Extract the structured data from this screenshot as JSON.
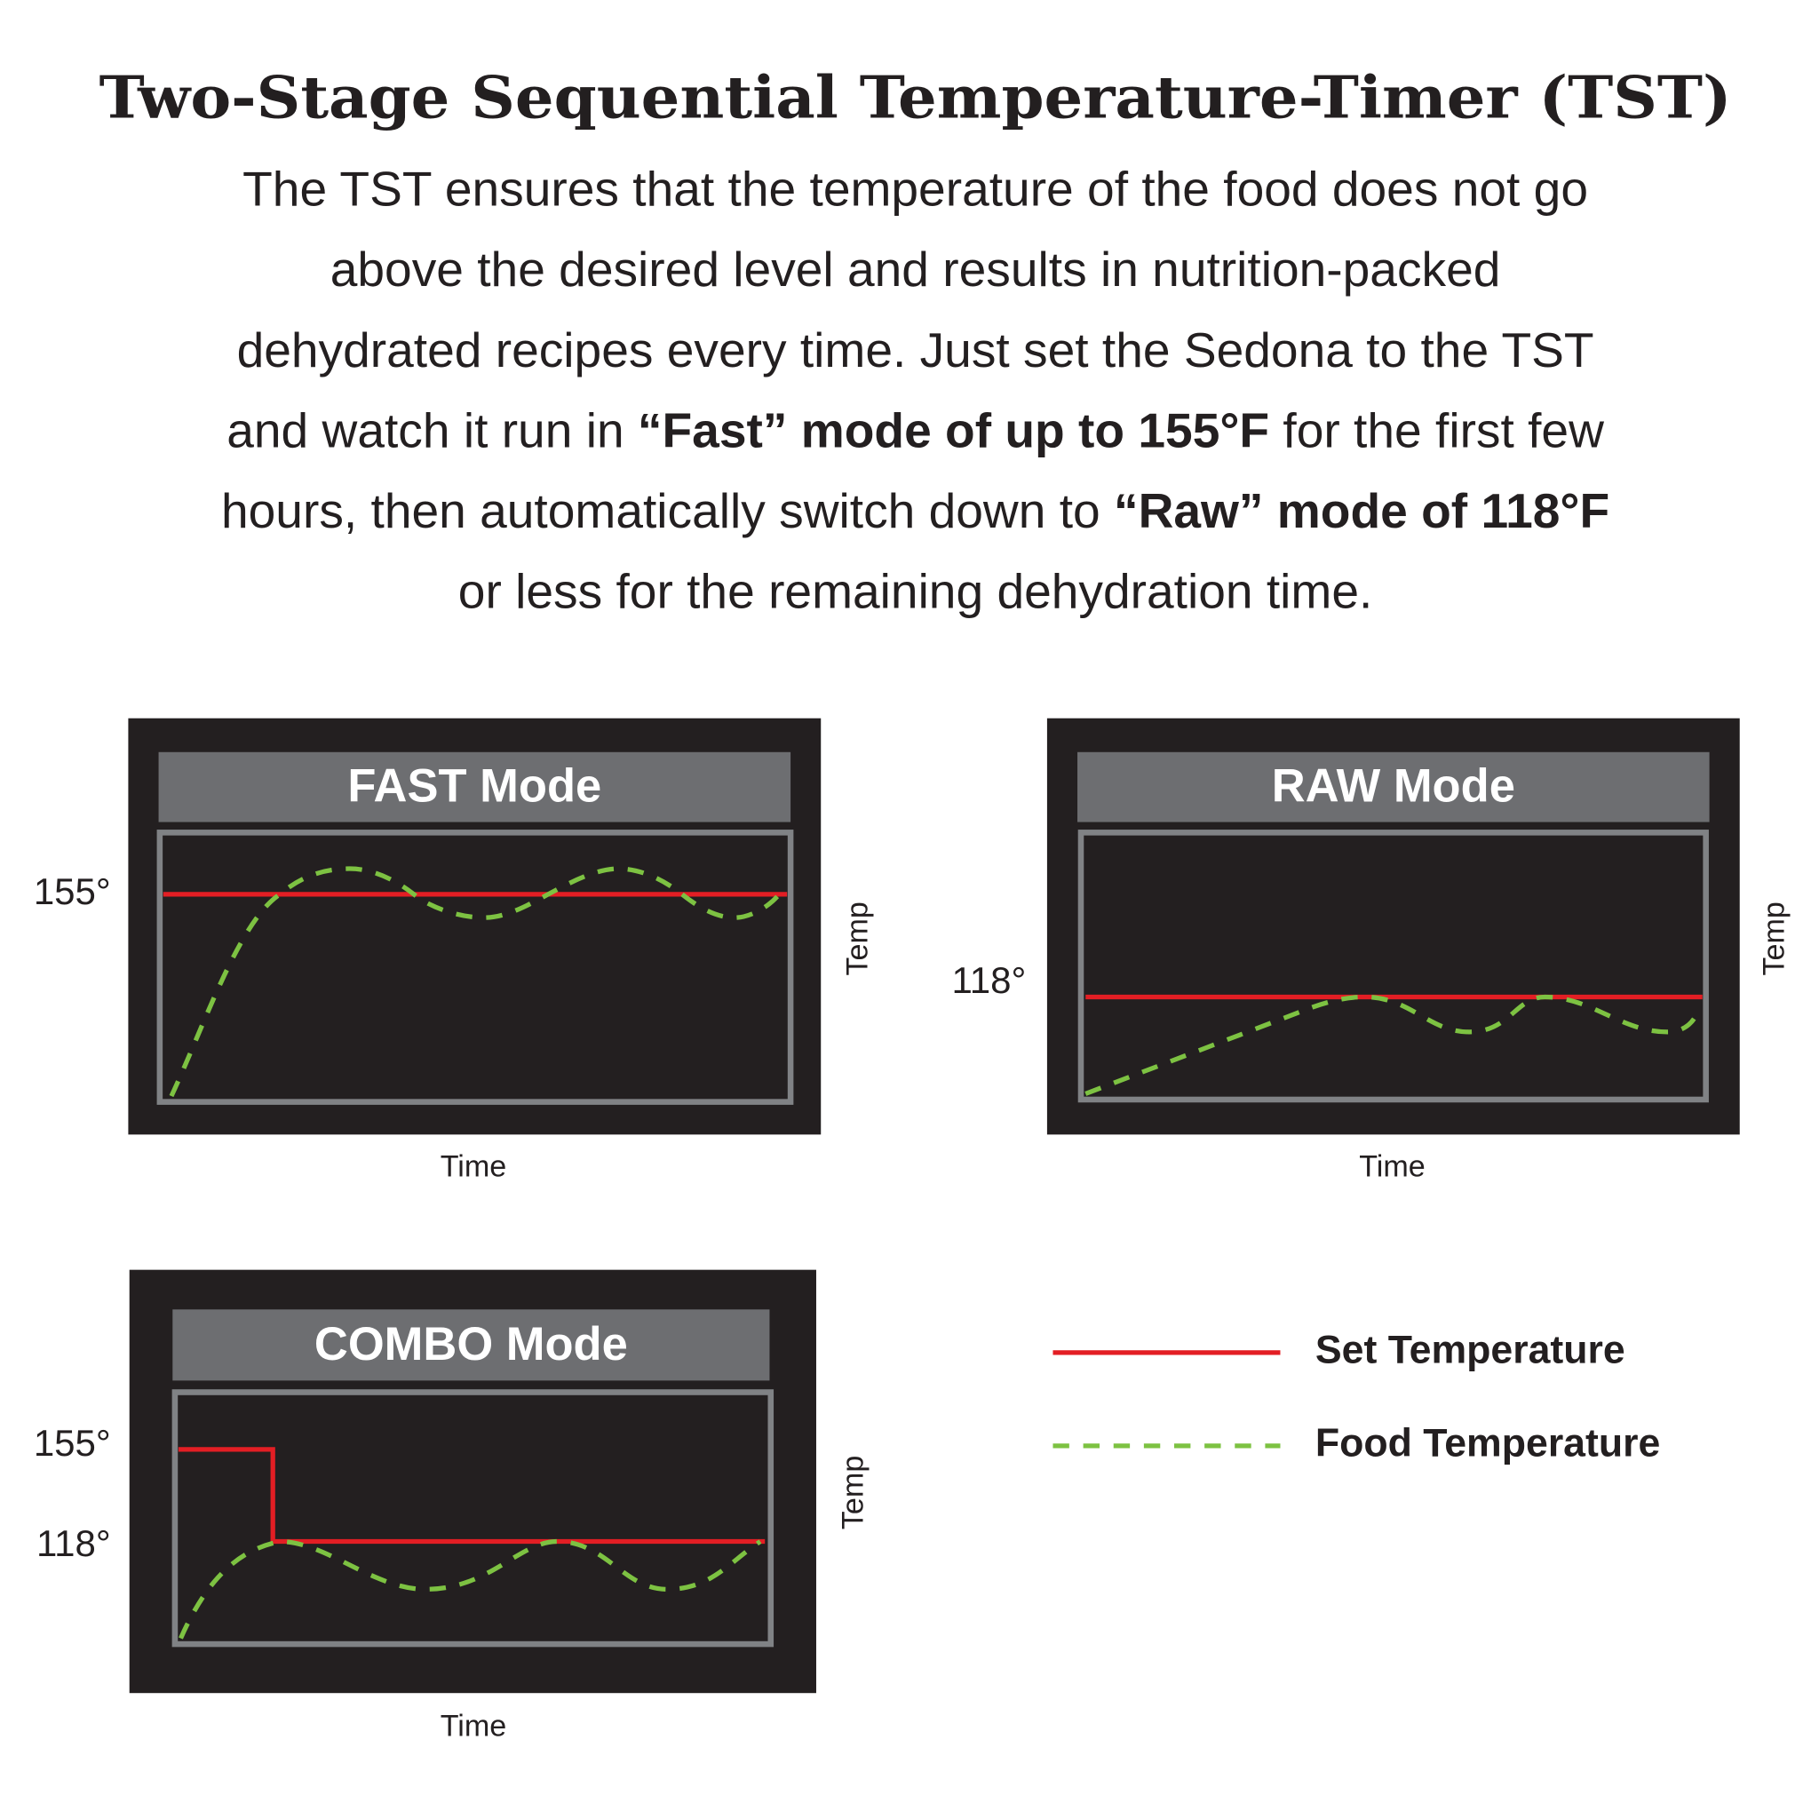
{
  "header": {
    "title": "Two-Stage Sequential Temperature-Timer (TST)",
    "paragraph": [
      [
        {
          "text": "The TST ensures that the temperature of the food does not go"
        }
      ],
      [
        {
          "text": "above the desired level and results in nutrition-packed"
        }
      ],
      [
        {
          "text": "dehydrated recipes every time. Just set the Sedona to the TST"
        }
      ],
      [
        {
          "text": "and watch it run in "
        },
        {
          "text": "“Fast” mode of up to 155°F",
          "bold": true
        },
        {
          "text": " for the first few"
        }
      ],
      [
        {
          "text": "hours, then automatically switch down to "
        },
        {
          "text": "“Raw” mode of 118°F",
          "bold": true
        }
      ],
      [
        {
          "text": "or less for the remaining dehydration time."
        }
      ]
    ]
  },
  "panels": [
    {
      "title": "FAST Mode",
      "y_labels": [
        "155°"
      ],
      "y_axis_label": "Temp",
      "x_axis_label": "Time"
    },
    {
      "title": "RAW Mode",
      "y_labels": [
        "118°"
      ],
      "y_axis_label": "Temp",
      "x_axis_label": "Time"
    },
    {
      "title": "COMBO Mode",
      "y_labels": [
        "155°",
        "118°"
      ],
      "y_axis_label": "Temp",
      "x_axis_label": "Time"
    }
  ],
  "legend": [
    {
      "label": "Set Temperature"
    },
    {
      "label": "Food Temperature"
    }
  ]
}
